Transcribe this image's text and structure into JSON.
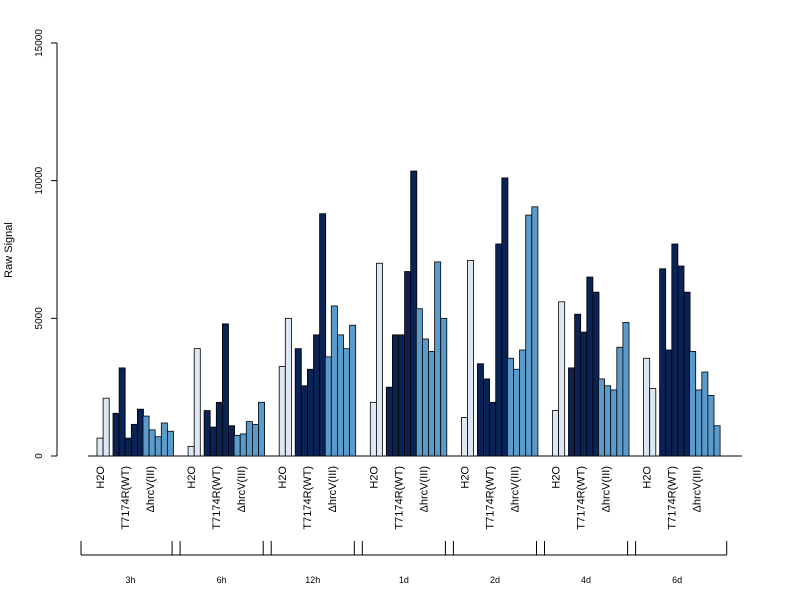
{
  "chart_data": {
    "type": "bar",
    "title": "",
    "xlabel": "",
    "ylabel": "Raw Signal",
    "ylim": [
      0,
      15000
    ],
    "yticks": [
      0,
      5000,
      10000,
      15000
    ],
    "grid": false,
    "colors": {
      "H2O": "#dde8f4",
      "T7174R(WT)": "#0b2255",
      "ΔhrcV(III)": "#5a9bcb"
    },
    "group_labels": [
      "H2O",
      "T7174R(WT)",
      "ΔhrcV(III)"
    ],
    "time_points": [
      {
        "label": "3h",
        "groups": [
          {
            "name": "H2O",
            "values": [
              650,
              2100
            ]
          },
          {
            "name": "T7174R(WT)",
            "values": [
              1550,
              3200,
              650,
              1150,
              1700
            ]
          },
          {
            "name": "ΔhrcV(III)",
            "values": [
              1450,
              950,
              700,
              1200,
              900
            ]
          }
        ]
      },
      {
        "label": "6h",
        "groups": [
          {
            "name": "H2O",
            "values": [
              350,
              3900
            ]
          },
          {
            "name": "T7174R(WT)",
            "values": [
              1650,
              1050,
              1950,
              4800,
              1100
            ]
          },
          {
            "name": "ΔhrcV(III)",
            "values": [
              750,
              800,
              1250,
              1150,
              1950
            ]
          }
        ]
      },
      {
        "label": "12h",
        "groups": [
          {
            "name": "H2O",
            "values": [
              3250,
              5000
            ]
          },
          {
            "name": "T7174R(WT)",
            "values": [
              3900,
              2550,
              3150,
              4400,
              8800
            ]
          },
          {
            "name": "ΔhrcV(III)",
            "values": [
              3600,
              5450,
              4400,
              3900,
              4750
            ]
          }
        ]
      },
      {
        "label": "1d",
        "groups": [
          {
            "name": "H2O",
            "values": [
              1950,
              7000
            ]
          },
          {
            "name": "T7174R(WT)",
            "values": [
              2500,
              4400,
              4400,
              6700,
              10350
            ]
          },
          {
            "name": "ΔhrcV(III)",
            "values": [
              5350,
              4250,
              3800,
              7050,
              5000
            ]
          }
        ]
      },
      {
        "label": "2d",
        "groups": [
          {
            "name": "H2O",
            "values": [
              1400,
              7100
            ]
          },
          {
            "name": "T7174R(WT)",
            "values": [
              3350,
              2800,
              1950,
              7700,
              10100
            ]
          },
          {
            "name": "ΔhrcV(III)",
            "values": [
              3550,
              3150,
              3850,
              8750,
              9050
            ]
          }
        ]
      },
      {
        "label": "4d",
        "groups": [
          {
            "name": "H2O",
            "values": [
              1650,
              5600
            ]
          },
          {
            "name": "T7174R(WT)",
            "values": [
              3200,
              5150,
              4500,
              6500,
              5950
            ]
          },
          {
            "name": "ΔhrcV(III)",
            "values": [
              2800,
              2550,
              2400,
              3950,
              4850
            ]
          }
        ]
      },
      {
        "label": "6d",
        "groups": [
          {
            "name": "H2O",
            "values": [
              3550,
              2450
            ]
          },
          {
            "name": "T7174R(WT)",
            "values": [
              6800,
              3850,
              7700,
              6900,
              5950
            ]
          },
          {
            "name": "ΔhrcV(III)",
            "values": [
              3800,
              2400,
              3050,
              2200,
              1100
            ]
          }
        ]
      }
    ]
  }
}
